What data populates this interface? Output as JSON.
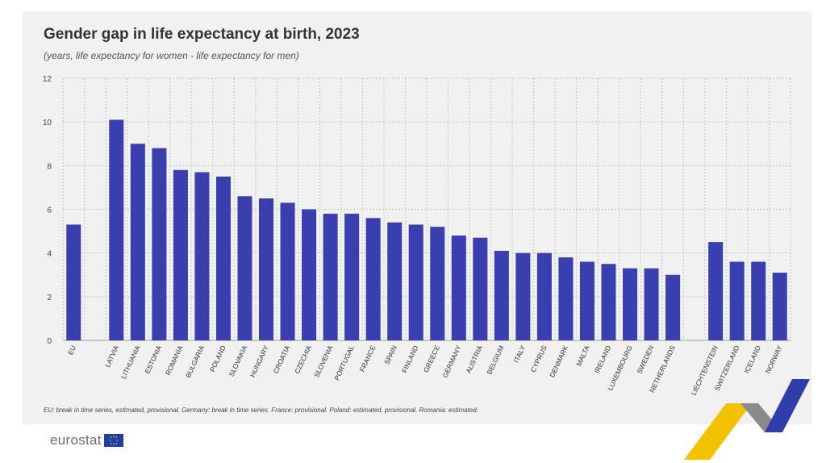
{
  "header": {
    "title": "Gender gap in life expectancy at birth, 2023",
    "subtitle": "(years, life expectancy for women - life expectancy for men)"
  },
  "footnote": "EU: break in time series, estimated, provisional. Germany: break in time series. France: provisional. Poland: estimated, provisional. Romania: estimated.",
  "logo": {
    "text": "eurostat",
    "flag_icon": "eu-flag-icon"
  },
  "colors": {
    "bar": "#3a3fb0",
    "panel": "#f1f1f1",
    "grid": "#c8c8c8",
    "text": "#333333",
    "deco_yellow": "#f2c200",
    "deco_blue": "#2d3ea8",
    "deco_grey": "#7d7d7d"
  },
  "chart_data": {
    "type": "bar",
    "title": "Gender gap in life expectancy at birth, 2023",
    "subtitle": "(years, life expectancy for women - life expectancy for men)",
    "xlabel": "",
    "ylabel": "",
    "ylim": [
      0,
      12
    ],
    "yticks": [
      0,
      2,
      4,
      6,
      8,
      10,
      12
    ],
    "grid": true,
    "legend": "none",
    "groups": [
      {
        "categories": [
          "EU"
        ],
        "values": [
          5.3
        ]
      },
      {
        "categories": [
          "LATVIA",
          "LITHUANIA",
          "ESTONIA",
          "ROMANIA",
          "BULGARIA",
          "POLAND",
          "SLOVAKIA",
          "HUNGARY",
          "CROATIA",
          "CZECHIA",
          "SLOVENIA",
          "PORTUGAL",
          "FRANCE",
          "SPAIN",
          "FINLAND",
          "GREECE",
          "GERMANY",
          "AUSTRIA",
          "BELGIUM",
          "ITALY",
          "CYPRUS",
          "DENMARK",
          "MALTA",
          "IRELAND",
          "LUXEMBOURG",
          "SWEDEN",
          "NETHERLANDS"
        ],
        "values": [
          10.1,
          9.0,
          8.8,
          7.8,
          7.7,
          7.5,
          6.6,
          6.5,
          6.3,
          6.0,
          5.8,
          5.8,
          5.6,
          5.4,
          5.3,
          5.2,
          4.8,
          4.7,
          4.1,
          4.0,
          4.0,
          3.8,
          3.6,
          3.5,
          3.3,
          3.3,
          3.0
        ]
      },
      {
        "categories": [
          "LIECHTENSTEIN",
          "SWITZERLAND",
          "ICELAND",
          "NORWAY"
        ],
        "values": [
          4.5,
          3.6,
          3.6,
          3.1
        ]
      }
    ]
  }
}
